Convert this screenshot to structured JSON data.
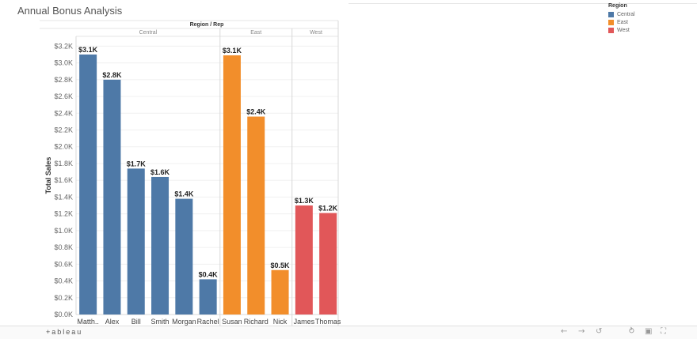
{
  "title": "Annual Bonus Analysis",
  "legend": {
    "title": "Region",
    "items": [
      {
        "label": "Central",
        "color": "#4e79a7"
      },
      {
        "label": "East",
        "color": "#f28e2b"
      },
      {
        "label": "West",
        "color": "#e15759"
      }
    ]
  },
  "footer": {
    "logo_text": "+ableau",
    "icons": [
      "undo-icon",
      "redo-icon",
      "revert-icon",
      "share-icon",
      "device-preview-icon",
      "fullscreen-icon"
    ]
  },
  "chart_data": {
    "type": "bar",
    "header_title": "Region / Rep",
    "ylabel": "Total Sales",
    "ylim": [
      0,
      3300
    ],
    "ytick_values": [
      0,
      200,
      400,
      600,
      800,
      1000,
      1200,
      1400,
      1600,
      1800,
      2000,
      2200,
      2400,
      2600,
      2800,
      3000,
      3200
    ],
    "ytick_labels": [
      "$0.0K",
      "$0.2K",
      "$0.4K",
      "$0.6K",
      "$0.8K",
      "$1.0K",
      "$1.2K",
      "$1.4K",
      "$1.6K",
      "$1.8K",
      "$2.0K",
      "$2.2K",
      "$2.4K",
      "$2.6K",
      "$2.8K",
      "$3.0K",
      "$3.2K"
    ],
    "grid": true,
    "groups": [
      {
        "name": "Central",
        "color": "#4e79a7",
        "categories": [
          "Matth..",
          "Alex",
          "Bill",
          "Smith",
          "Morgan",
          "Rachel"
        ],
        "values": [
          3100,
          2800,
          1740,
          1640,
          1380,
          420
        ],
        "labels": [
          "$3.1K",
          "$2.8K",
          "$1.7K",
          "$1.6K",
          "$1.4K",
          "$0.4K"
        ]
      },
      {
        "name": "East",
        "color": "#f28e2b",
        "categories": [
          "Susan",
          "Richard",
          "Nick"
        ],
        "values": [
          3090,
          2360,
          530
        ],
        "labels": [
          "$3.1K",
          "$2.4K",
          "$0.5K"
        ]
      },
      {
        "name": "West",
        "color": "#e15759",
        "categories": [
          "James",
          "Thomas"
        ],
        "values": [
          1300,
          1210
        ],
        "labels": [
          "$1.3K",
          "$1.2K"
        ]
      }
    ]
  }
}
